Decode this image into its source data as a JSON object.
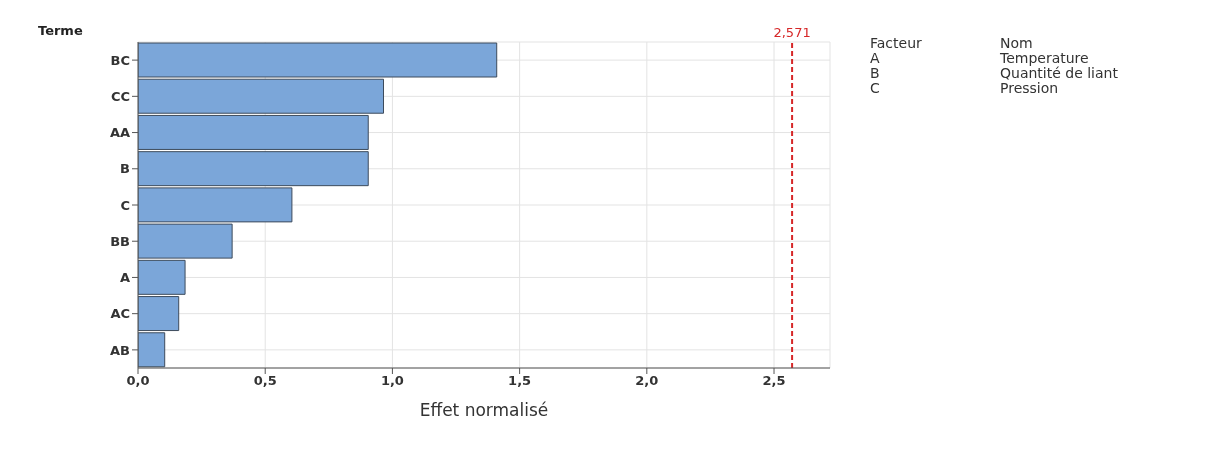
{
  "chart_data": {
    "type": "bar",
    "orientation": "horizontal",
    "ylabel": "Terme",
    "xlabel": "Effet normalisé",
    "categories": [
      "BC",
      "CC",
      "AA",
      "B",
      "C",
      "BB",
      "A",
      "AC",
      "AB"
    ],
    "values": [
      1.41,
      0.965,
      0.905,
      0.905,
      0.605,
      0.37,
      0.185,
      0.16,
      0.105
    ],
    "color": "#7ba6d9",
    "xlim": [
      0,
      2.72
    ],
    "xticks": [
      {
        "value": 0,
        "label": "0,0"
      },
      {
        "value": 0.5,
        "label": "0,5"
      },
      {
        "value": 1,
        "label": "1,0"
      },
      {
        "value": 1.5,
        "label": "1,5"
      },
      {
        "value": 2,
        "label": "2,0"
      },
      {
        "value": 2.5,
        "label": "2,5"
      }
    ],
    "ref_lines": [
      {
        "axis": "x",
        "value": 2.571,
        "label": "2,571",
        "color": "#d62728",
        "line_style": "dashed"
      }
    ],
    "grid": true,
    "annotations": [
      "Facteur",
      "Nom",
      "A",
      "Temperature",
      "B",
      "Quantité de liant",
      "C",
      "Pression"
    ]
  }
}
